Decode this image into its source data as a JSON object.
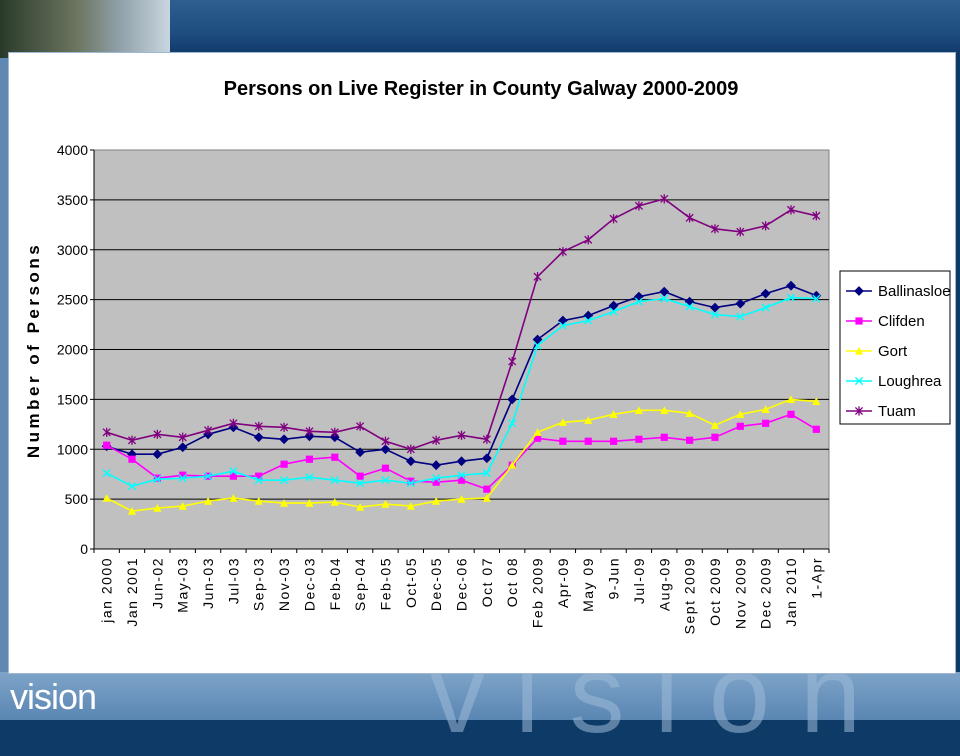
{
  "slide": {
    "footer_brand": "vision",
    "watermark": "vision"
  },
  "chart_data": {
    "type": "line",
    "title": "Persons on Live Register in County Galway 2000-2009",
    "xlabel": "",
    "ylabel": "Number of Persons",
    "ylim": [
      0,
      4000
    ],
    "yticks": [
      0,
      500,
      1000,
      1500,
      2000,
      2500,
      3000,
      3500,
      4000
    ],
    "grid": true,
    "legend_position": "right",
    "plot_background": "#c0c0c0",
    "categories": [
      "jan 2000",
      "Jan 2001",
      "Jun-02",
      "May-03",
      "Jun-03",
      "Jul-03",
      "Sep-03",
      "Nov-03",
      "Dec-03",
      "Feb-04",
      "Sep-04",
      "Feb-05",
      "Oct-05",
      "Dec-05",
      "Dec-06",
      "Oct 07",
      "Oct 08",
      "Feb 2009",
      "Apr-09",
      "May 09",
      "9-Jun",
      "Jul-09",
      "Aug-09",
      "Sept 2009",
      "Oct 2009",
      "Nov 2009",
      "Dec 2009",
      "Jan 2010",
      "1-Apr"
    ],
    "series": [
      {
        "name": "Ballinasloe",
        "color": "#000080",
        "marker": "diamond",
        "values": [
          1030,
          950,
          950,
          1020,
          1150,
          1220,
          1120,
          1100,
          1130,
          1120,
          970,
          1000,
          880,
          840,
          880,
          910,
          1500,
          2100,
          2290,
          2340,
          2440,
          2530,
          2580,
          2480,
          2420,
          2460,
          2560,
          2640,
          2540
        ]
      },
      {
        "name": "Clifden",
        "color": "#ff00ff",
        "marker": "square",
        "values": [
          1040,
          900,
          710,
          740,
          730,
          730,
          730,
          850,
          900,
          920,
          730,
          810,
          680,
          670,
          690,
          600,
          840,
          1110,
          1080,
          1080,
          1080,
          1100,
          1120,
          1090,
          1120,
          1230,
          1260,
          1350,
          1200
        ]
      },
      {
        "name": "Gort",
        "color": "#ffff00",
        "marker": "triangle",
        "values": [
          510,
          380,
          410,
          430,
          480,
          510,
          480,
          460,
          460,
          470,
          420,
          450,
          430,
          480,
          500,
          510,
          840,
          1170,
          1270,
          1290,
          1350,
          1390,
          1390,
          1360,
          1240,
          1350,
          1400,
          1500,
          1480
        ]
      },
      {
        "name": "Loughrea",
        "color": "#00ffff",
        "marker": "x",
        "values": [
          760,
          630,
          700,
          710,
          730,
          780,
          690,
          690,
          720,
          690,
          660,
          690,
          660,
          710,
          740,
          760,
          1260,
          2040,
          2240,
          2290,
          2380,
          2480,
          2510,
          2430,
          2350,
          2330,
          2420,
          2520,
          2510
        ]
      },
      {
        "name": "Tuam",
        "color": "#800080",
        "marker": "star",
        "values": [
          1170,
          1090,
          1150,
          1120,
          1190,
          1260,
          1230,
          1220,
          1180,
          1170,
          1230,
          1080,
          1000,
          1090,
          1140,
          1100,
          1880,
          2730,
          2980,
          3100,
          3310,
          3440,
          3510,
          3320,
          3210,
          3180,
          3240,
          3400,
          3340
        ]
      }
    ]
  }
}
